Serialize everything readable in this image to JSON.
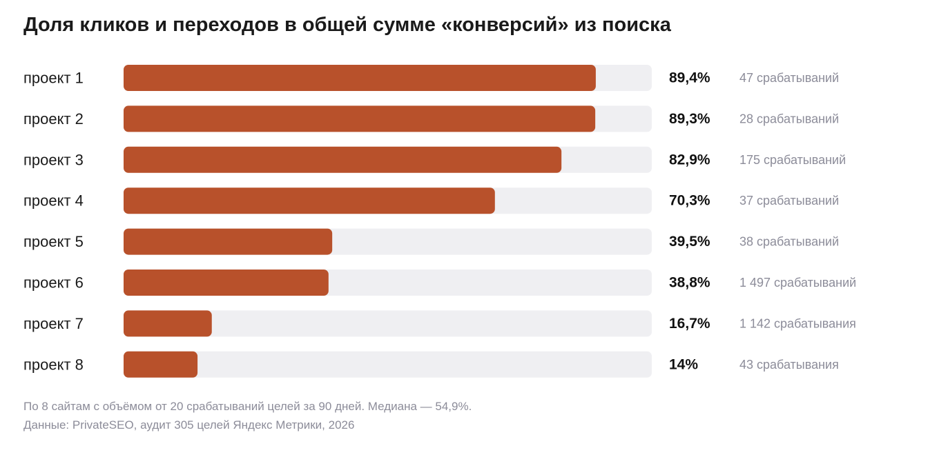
{
  "chart_data": {
    "type": "bar",
    "orientation": "horizontal",
    "title": "Доля кликов и переходов в общей сумме «конверсий» из поиска",
    "categories": [
      "проект 1",
      "проект 2",
      "проект 3",
      "проект 4",
      "проект 5",
      "проект 6",
      "проект 7",
      "проект 8"
    ],
    "values": [
      89.4,
      89.3,
      82.9,
      70.3,
      39.5,
      38.8,
      16.7,
      14
    ],
    "value_labels": [
      "89,4%",
      "89,3%",
      "82,9%",
      "70,3%",
      "39,5%",
      "38,8%",
      "16,7%",
      "14%"
    ],
    "counts": [
      "47 срабатываний",
      "28 срабатываний",
      "175 срабатываний",
      "37 срабатываний",
      "38 срабатываний",
      "1 497 срабатываний",
      "1 142 срабатывания",
      "43 срабатывания"
    ],
    "xlim": [
      0,
      100
    ],
    "grid": false,
    "colors": {
      "bar": "#b8512b",
      "track": "#efeff2"
    }
  },
  "footnote": {
    "line1": "По 8 сайтам с объёмом от 20 срабатываний целей за 90 дней. Медиана — 54,9%.",
    "line2": "Данные: PrivateSEO, аудит 305 целей Яндекс Метрики, 2026"
  }
}
